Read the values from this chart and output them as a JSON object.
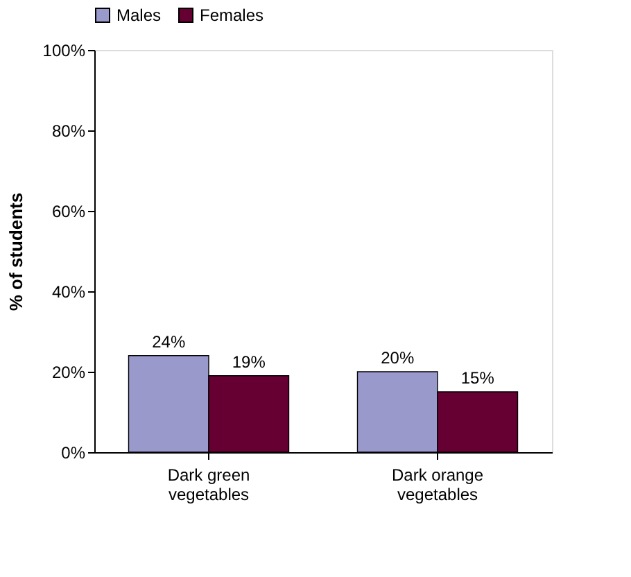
{
  "chart_data": {
    "type": "bar",
    "ylabel": "% of students",
    "categories": [
      "Dark green vegetables",
      "Dark orange vegetables"
    ],
    "series": [
      {
        "name": "Males",
        "color": "#9999cc",
        "values": [
          24,
          20
        ],
        "value_labels": [
          "24%",
          "20%"
        ]
      },
      {
        "name": "Females",
        "color": "#660033",
        "values": [
          19,
          15
        ],
        "value_labels": [
          "19%",
          "15%"
        ]
      }
    ],
    "ylim": [
      0,
      100
    ],
    "yticks": [
      {
        "value": 0,
        "label": "0%"
      },
      {
        "value": 20,
        "label": "20%"
      },
      {
        "value": 40,
        "label": "40%"
      },
      {
        "value": 60,
        "label": "60%"
      },
      {
        "value": 80,
        "label": "80%"
      },
      {
        "value": 100,
        "label": "100%"
      }
    ],
    "grid": false,
    "legend": "top"
  }
}
